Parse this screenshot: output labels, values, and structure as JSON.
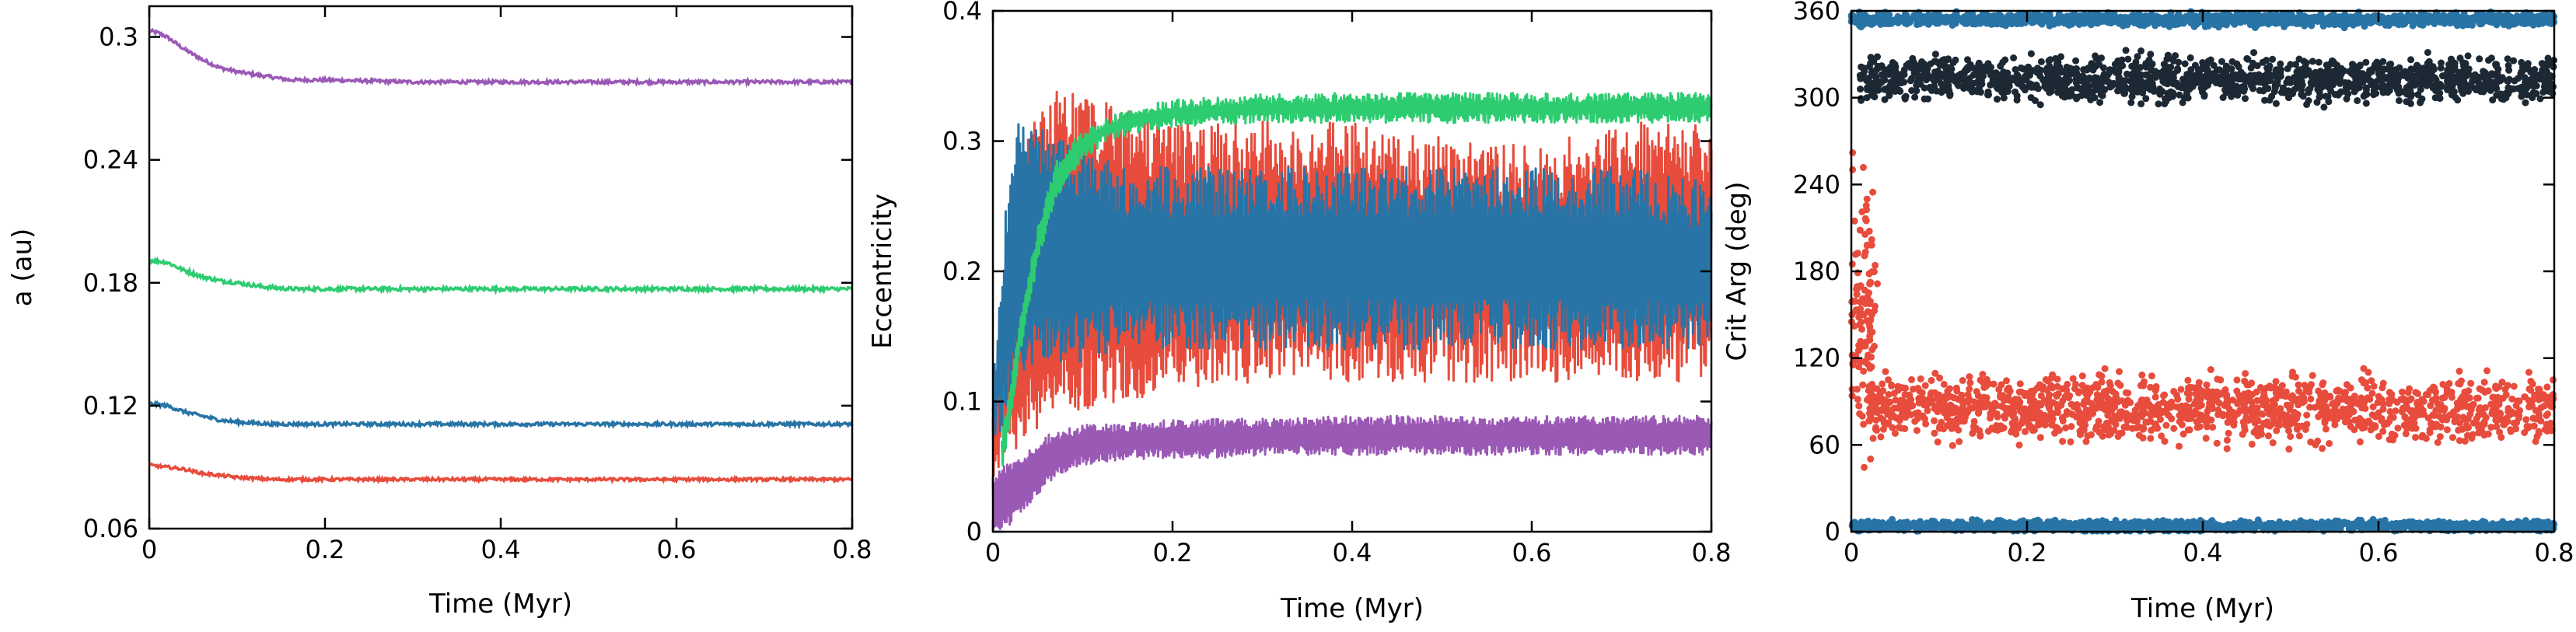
{
  "chart_data": [
    {
      "type": "line",
      "xlabel": "Time (Myr)",
      "ylabel": "a (au)",
      "xlim": [
        0,
        0.8
      ],
      "ylim": [
        0.06,
        0.315
      ],
      "xticks": [
        "0",
        "0.2",
        "0.4",
        "0.6",
        "0.8"
      ],
      "xtick_values": [
        0,
        0.2,
        0.4,
        0.6,
        0.8
      ],
      "yticks": [
        "0.06",
        "0.12",
        "0.18",
        "0.24",
        "0.3"
      ],
      "ytick_values": [
        0.06,
        0.12,
        0.18,
        0.24,
        0.3
      ],
      "grid": false,
      "series": [
        {
          "color": "#9b59b6",
          "x": [
            0,
            0.01,
            0.02,
            0.04,
            0.06,
            0.08,
            0.1,
            0.13,
            0.16,
            0.2,
            0.3,
            0.4,
            0.5,
            0.6,
            0.7,
            0.8
          ],
          "y": [
            0.303,
            0.302,
            0.3,
            0.294,
            0.289,
            0.285,
            0.283,
            0.281,
            0.279,
            0.279,
            0.278,
            0.278,
            0.278,
            0.278,
            0.278,
            0.278
          ],
          "noise": 0.0008
        },
        {
          "color": "#2ecc71",
          "x": [
            0,
            0.02,
            0.04,
            0.06,
            0.08,
            0.1,
            0.13,
            0.16,
            0.2,
            0.3,
            0.4,
            0.5,
            0.6,
            0.7,
            0.8
          ],
          "y": [
            0.191,
            0.19,
            0.186,
            0.183,
            0.181,
            0.18,
            0.178,
            0.177,
            0.177,
            0.177,
            0.177,
            0.177,
            0.177,
            0.177,
            0.177
          ],
          "noise": 0.0009
        },
        {
          "color": "#2874a6",
          "x": [
            0,
            0.02,
            0.04,
            0.06,
            0.08,
            0.1,
            0.14,
            0.2,
            0.3,
            0.4,
            0.5,
            0.6,
            0.7,
            0.8
          ],
          "y": [
            0.121,
            0.12,
            0.117,
            0.115,
            0.113,
            0.112,
            0.111,
            0.111,
            0.111,
            0.111,
            0.111,
            0.111,
            0.111,
            0.111
          ],
          "noise": 0.0008
        },
        {
          "color": "#e74c3c",
          "x": [
            0,
            0.02,
            0.04,
            0.06,
            0.08,
            0.1,
            0.14,
            0.2,
            0.3,
            0.4,
            0.5,
            0.6,
            0.7,
            0.8
          ],
          "y": [
            0.091,
            0.09,
            0.089,
            0.087,
            0.086,
            0.085,
            0.084,
            0.084,
            0.084,
            0.084,
            0.084,
            0.084,
            0.084,
            0.084
          ],
          "noise": 0.0007
        }
      ]
    },
    {
      "type": "line",
      "xlabel": "Time (Myr)",
      "ylabel": "Eccentricity",
      "xlim": [
        0,
        0.8
      ],
      "ylim": [
        0,
        0.4
      ],
      "xticks": [
        "0",
        "0.2",
        "0.4",
        "0.6",
        "0.8"
      ],
      "xtick_values": [
        0,
        0.2,
        0.4,
        0.6,
        0.8
      ],
      "yticks": [
        "0",
        "0.1",
        "0.2",
        "0.3",
        "0.4"
      ],
      "ytick_values": [
        0,
        0.1,
        0.2,
        0.3,
        0.4
      ],
      "grid": false,
      "series": [
        {
          "color": "#e74c3c",
          "style": "band",
          "x": [
            0,
            0.02,
            0.04,
            0.06,
            0.08,
            0.1,
            0.15,
            0.2,
            0.3,
            0.4,
            0.5,
            0.6,
            0.7,
            0.8
          ],
          "low": [
            0.06,
            0.08,
            0.1,
            0.1,
            0.11,
            0.12,
            0.12,
            0.13,
            0.14,
            0.14,
            0.14,
            0.14,
            0.14,
            0.14
          ],
          "high": [
            0.1,
            0.2,
            0.28,
            0.31,
            0.32,
            0.31,
            0.3,
            0.29,
            0.29,
            0.29,
            0.28,
            0.27,
            0.29,
            0.29
          ],
          "noise": 0.025
        },
        {
          "color": "#2874a6",
          "style": "band",
          "x": [
            0,
            0.01,
            0.02,
            0.03,
            0.05,
            0.08,
            0.1,
            0.15,
            0.2,
            0.3,
            0.4,
            0.5,
            0.6,
            0.7,
            0.8
          ],
          "low": [
            0.08,
            0.1,
            0.12,
            0.14,
            0.15,
            0.15,
            0.15,
            0.16,
            0.16,
            0.16,
            0.16,
            0.16,
            0.16,
            0.16,
            0.16
          ],
          "high": [
            0.1,
            0.2,
            0.27,
            0.3,
            0.29,
            0.28,
            0.27,
            0.26,
            0.26,
            0.26,
            0.26,
            0.26,
            0.26,
            0.26,
            0.25
          ],
          "noise": 0.02
        },
        {
          "color": "#2ecc71",
          "style": "band",
          "x": [
            0.01,
            0.02,
            0.03,
            0.05,
            0.07,
            0.1,
            0.13,
            0.16,
            0.2,
            0.3,
            0.4,
            0.5,
            0.6,
            0.7,
            0.8
          ],
          "low": [
            0.05,
            0.09,
            0.14,
            0.21,
            0.26,
            0.29,
            0.305,
            0.31,
            0.315,
            0.318,
            0.318,
            0.318,
            0.318,
            0.318,
            0.318
          ],
          "high": [
            0.07,
            0.11,
            0.16,
            0.23,
            0.28,
            0.305,
            0.315,
            0.322,
            0.328,
            0.332,
            0.333,
            0.333,
            0.333,
            0.333,
            0.333
          ],
          "noise": 0.004
        },
        {
          "color": "#9b59b6",
          "style": "band",
          "x": [
            0,
            0.02,
            0.04,
            0.06,
            0.08,
            0.1,
            0.15,
            0.2,
            0.3,
            0.4,
            0.5,
            0.6,
            0.7,
            0.8
          ],
          "low": [
            0.0,
            0.01,
            0.025,
            0.04,
            0.05,
            0.055,
            0.06,
            0.06,
            0.062,
            0.063,
            0.063,
            0.063,
            0.063,
            0.063
          ],
          "high": [
            0.04,
            0.05,
            0.06,
            0.07,
            0.075,
            0.078,
            0.08,
            0.082,
            0.083,
            0.085,
            0.085,
            0.085,
            0.085,
            0.085
          ],
          "noise": 0.004
        }
      ]
    },
    {
      "type": "scatter",
      "xlabel": "Time (Myr)",
      "ylabel": "Crit Arg (deg)",
      "xlim": [
        0,
        0.8
      ],
      "ylim": [
        0,
        360
      ],
      "xticks": [
        "0",
        "0.2",
        "0.4",
        "0.6",
        "0.8"
      ],
      "xtick_values": [
        0,
        0.2,
        0.4,
        0.6,
        0.8
      ],
      "yticks": [
        "0",
        "60",
        "120",
        "180",
        "240",
        "300",
        "360"
      ],
      "ytick_values": [
        0,
        60,
        120,
        180,
        240,
        300,
        360
      ],
      "grid": false,
      "series": [
        {
          "color": "#2874a6",
          "bands": [
            {
              "x": [
                0,
                0.8
              ],
              "y_center": 354,
              "y_spread": 6
            },
            {
              "x": [
                0,
                0.8
              ],
              "y_center": 4,
              "y_spread": 5
            }
          ]
        },
        {
          "color": "#1c2833",
          "bands": [
            {
              "x": [
                0.01,
                0.8
              ],
              "y_center": 313,
              "y_spread": 22
            }
          ]
        },
        {
          "color": "#e74c3c",
          "bands": [
            {
              "x": [
                0.02,
                0.8
              ],
              "y_center": 85,
              "y_spread": 32
            },
            {
              "x": [
                0,
                0.03
              ],
              "y_center": 150,
              "y_spread": 130
            }
          ]
        }
      ]
    }
  ]
}
